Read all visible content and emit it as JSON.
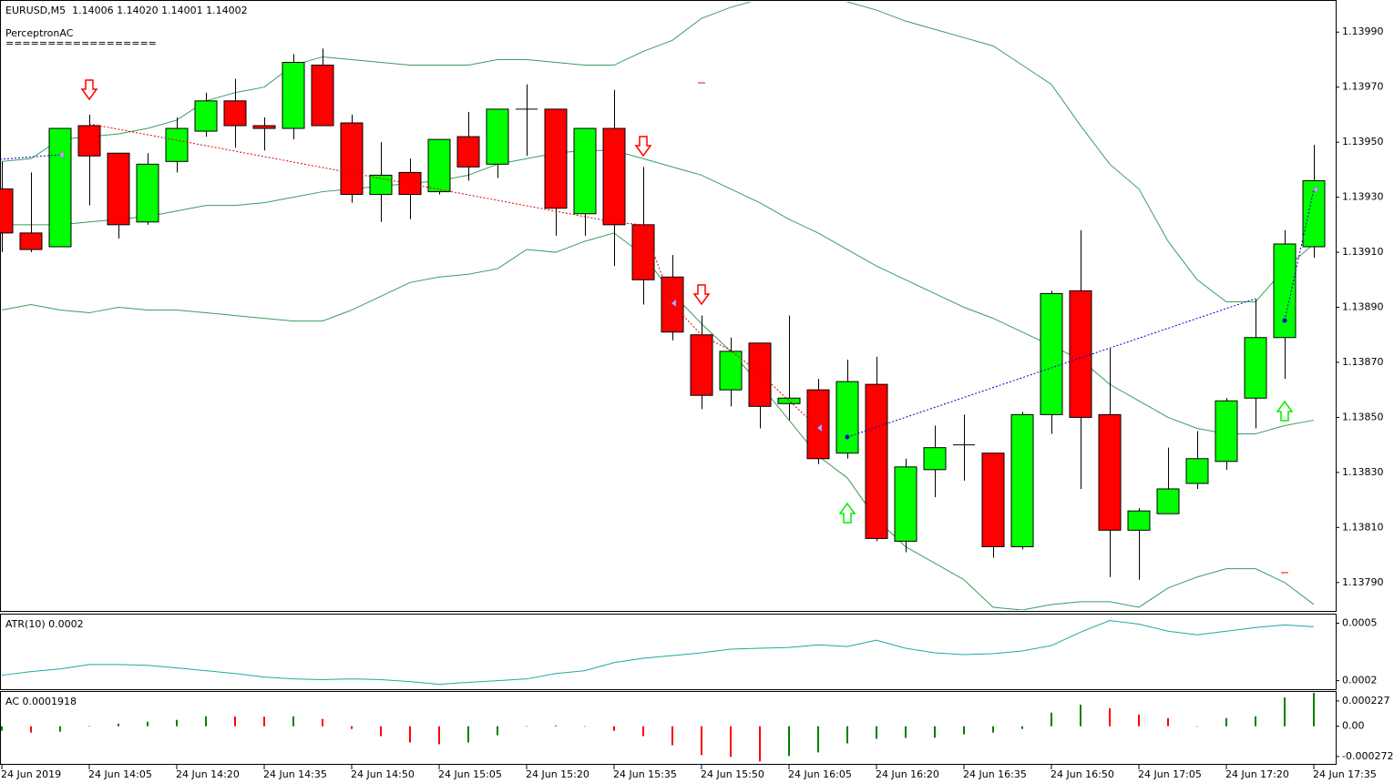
{
  "chart_data": [
    {
      "type": "candlestick",
      "title": "EURUSD,M5  1.14006 1.14020 1.14001 1.14002",
      "subtitle": "PerceptronAC",
      "annotation": "==================",
      "categories": [
        "24 Jun 2019",
        null,
        null,
        "24 Jun 14:05",
        null,
        null,
        "24 Jun 14:20",
        null,
        null,
        "24 Jun 14:35",
        null,
        null,
        "24 Jun 14:50",
        null,
        null,
        "24 Jun 15:05",
        null,
        null,
        "24 Jun 15:20",
        null,
        null,
        "24 Jun 15:35",
        null,
        null,
        "24 Jun 15:50",
        null,
        null,
        "24 Jun 16:05",
        null,
        null,
        "24 Jun 16:20",
        null,
        null,
        "24 Jun 16:35",
        null,
        null,
        "24 Jun 16:50",
        null,
        null,
        "24 Jun 17:05",
        null,
        null,
        "24 Jun 17:20",
        null,
        null,
        "24 Jun 17:35"
      ],
      "open": [
        1.13933,
        1.13917,
        1.13912,
        1.13956,
        1.13946,
        1.13921,
        1.13943,
        1.13954,
        1.13965,
        1.13956,
        1.13955,
        1.13978,
        1.13957,
        1.13931,
        1.13939,
        1.13932,
        1.13952,
        1.13942,
        1.13962,
        1.13962,
        1.13924,
        1.13955,
        1.1392,
        1.13901,
        1.1388,
        1.1386,
        1.13877,
        1.13855,
        1.1386,
        1.13837,
        1.13862,
        1.13805,
        1.13831,
        1.1384,
        1.13837,
        1.13803,
        1.13851,
        1.13896,
        1.13851,
        1.13809,
        1.13815,
        1.13826,
        1.13834,
        1.13857,
        1.13879,
        1.13912
      ],
      "high": [
        1.13943,
        1.13939,
        1.13955,
        1.1396,
        1.13946,
        1.13946,
        1.13959,
        1.13968,
        1.13973,
        1.13959,
        1.13982,
        1.13984,
        1.1396,
        1.1395,
        1.13944,
        1.13951,
        1.13961,
        1.13962,
        1.13971,
        1.13962,
        1.13955,
        1.13969,
        1.13941,
        1.13909,
        1.13887,
        1.13879,
        1.13877,
        1.13887,
        1.13864,
        1.13871,
        1.13872,
        1.13835,
        1.13847,
        1.13851,
        1.13837,
        1.13852,
        1.13896,
        1.13918,
        1.13875,
        1.13817,
        1.13839,
        1.13845,
        1.13857,
        1.13893,
        1.13918,
        1.13949
      ],
      "low": [
        1.1391,
        1.1391,
        1.13912,
        1.13927,
        1.13915,
        1.1392,
        1.13939,
        1.13952,
        1.13948,
        1.13947,
        1.13951,
        1.13956,
        1.13928,
        1.13921,
        1.13922,
        1.13931,
        1.13936,
        1.13937,
        1.13945,
        1.13916,
        1.13916,
        1.13905,
        1.13891,
        1.13878,
        1.13853,
        1.13854,
        1.13846,
        1.13849,
        1.13833,
        1.13835,
        1.13805,
        1.13801,
        1.13821,
        1.13827,
        1.13799,
        1.13802,
        1.13844,
        1.13824,
        1.13792,
        1.13791,
        1.13815,
        1.13824,
        1.13831,
        1.13846,
        1.13864,
        1.13908
      ],
      "close": [
        1.13917,
        1.13911,
        1.13955,
        1.13945,
        1.1392,
        1.13942,
        1.13955,
        1.13965,
        1.13956,
        1.13955,
        1.13979,
        1.13956,
        1.13931,
        1.13938,
        1.13931,
        1.13951,
        1.13941,
        1.13962,
        1.13962,
        1.13926,
        1.13955,
        1.1392,
        1.139,
        1.13881,
        1.13858,
        1.13874,
        1.13854,
        1.13857,
        1.13835,
        1.13863,
        1.13806,
        1.13832,
        1.13839,
        1.1384,
        1.13803,
        1.13851,
        1.13895,
        1.1385,
        1.13809,
        1.13816,
        1.13824,
        1.13835,
        1.13856,
        1.13879,
        1.13913,
        1.13936
      ],
      "up_color": "#00ff00",
      "down_color": "#ff0000",
      "bands": [
        {
          "color": "#3a9d5d",
          "values": [
            1.13943,
            1.13944,
            1.13951,
            1.13952,
            1.13953,
            1.13955,
            1.13958,
            1.13965,
            1.13968,
            1.1397,
            1.13978,
            1.13981,
            1.1398,
            1.13979,
            1.13978,
            1.13978,
            1.13978,
            1.1398,
            1.1398,
            1.13979,
            1.13978,
            1.13978,
            1.13983,
            1.13987,
            1.13995,
            1.13999,
            1.14002,
            1.14004,
            1.14003,
            1.14001,
            1.13998,
            1.13994,
            1.13991,
            1.13988,
            1.13985,
            1.13978,
            1.13971,
            1.13956,
            1.13942,
            1.13933,
            1.13914,
            1.139,
            1.13892,
            1.13892,
            1.13904,
            1.13913
          ]
        },
        {
          "color": "#3a9d5d",
          "values": [
            1.1392,
            1.1392,
            1.1392,
            1.13921,
            1.13922,
            1.13923,
            1.13925,
            1.13927,
            1.13927,
            1.13928,
            1.1393,
            1.13932,
            1.13933,
            1.13934,
            1.13935,
            1.13936,
            1.13938,
            1.13942,
            1.13944,
            1.13946,
            1.13947,
            1.13947,
            1.13944,
            1.13941,
            1.13938,
            1.13933,
            1.13928,
            1.13922,
            1.13917,
            1.13911,
            1.13905,
            1.139,
            1.13895,
            1.1389,
            1.13886,
            1.13881,
            1.13876,
            1.13871,
            1.13862,
            1.13856,
            1.1385,
            1.13846,
            1.13844,
            1.13844,
            1.13847,
            1.13849
          ]
        },
        {
          "color": "#3a9d5d",
          "values": [
            1.13889,
            1.13891,
            1.13889,
            1.13888,
            1.1389,
            1.13889,
            1.13889,
            1.13888,
            1.13887,
            1.13886,
            1.13885,
            1.13885,
            1.13889,
            1.13894,
            1.13899,
            1.13901,
            1.13902,
            1.13904,
            1.13911,
            1.1391,
            1.13914,
            1.13917,
            1.13909,
            1.13895,
            1.13884,
            1.13874,
            1.13862,
            1.13849,
            1.13836,
            1.13828,
            1.13813,
            1.13803,
            1.13797,
            1.13791,
            1.13781,
            1.1378,
            1.13782,
            1.13783,
            1.13783,
            1.13781,
            1.13788,
            1.13792,
            1.13795,
            1.13795,
            1.1379,
            1.13782
          ]
        }
      ],
      "ylim": [
        1.1378,
        1.14001
      ],
      "yticks": [
        {
          "value": 1.1379,
          "label": "1.13790"
        },
        {
          "value": 1.1381,
          "label": "1.13810"
        },
        {
          "value": 1.1383,
          "label": "1.13830"
        },
        {
          "value": 1.1385,
          "label": "1.13850"
        },
        {
          "value": 1.1387,
          "label": "1.13870"
        },
        {
          "value": 1.1389,
          "label": "1.13890"
        },
        {
          "value": 1.1391,
          "label": "1.13910"
        },
        {
          "value": 1.1393,
          "label": "1.13930"
        },
        {
          "value": 1.1395,
          "label": "1.13950"
        },
        {
          "value": 1.1397,
          "label": "1.13970"
        },
        {
          "value": 1.1399,
          "label": "1.13990"
        }
      ]
    },
    {
      "type": "line",
      "title": "ATR(10) 0.0002",
      "color": "#20a8a0",
      "values": [
        0.000228,
        0.000247,
        0.000261,
        0.000284,
        0.000284,
        0.00028,
        0.000266,
        0.000252,
        0.000237,
        0.000219,
        0.000209,
        0.000205,
        0.000209,
        0.000205,
        0.000195,
        0.000181,
        0.000191,
        0.0002,
        0.000209,
        0.000237,
        0.000252,
        0.000294,
        0.000317,
        0.000331,
        0.000345,
        0.000364,
        0.000369,
        0.000373,
        0.000387,
        0.000378,
        0.000411,
        0.000369,
        0.000345,
        0.000336,
        0.000341,
        0.000355,
        0.000383,
        0.000453,
        0.000514,
        0.000495,
        0.000458,
        0.000439,
        0.000458,
        0.000477,
        0.000491,
        0.000481
      ],
      "ylim": [
        0.00016,
        0.00054
      ],
      "yticks": [
        0.0002,
        0.0005
      ]
    },
    {
      "type": "bar",
      "title": "AC 0.0001918",
      "up_color": "#008000",
      "down_color": "#ff0000",
      "values": [
        -4.1e-05,
        -5.7e-05,
        -4.9e-05,
        4e-06,
        2.4e-05,
        4.1e-05,
        5.7e-05,
        8.9e-05,
        8.7e-05,
        8.5e-05,
        8.9e-05,
        6.5e-05,
        -2.4e-05,
        -8.9e-05,
        -0.000146,
        -0.000162,
        -0.000146,
        -8.1e-05,
        -4e-06,
        8e-06,
        0,
        -4.1e-05,
        -8.9e-05,
        -0.00017,
        -0.000259,
        -0.000276,
        -0.000316,
        -0.000267,
        -0.000235,
        -0.000154,
        -0.000113,
        -0.000105,
        -0.000103,
        -7.3e-05,
        -5.7e-05,
        -2.4e-05,
        0.000122,
        0.000194,
        0.000162,
        0.000105,
        7.3e-05,
        0,
        7.3e-05,
        8.9e-05,
        0.000259,
        0.0003
      ],
      "ylim": [
        -0.00033,
        0.0003
      ],
      "yticks": [
        -0.000272,
        {
          "value": 0,
          "label": "0.00"
        },
        0.000227
      ]
    }
  ]
}
